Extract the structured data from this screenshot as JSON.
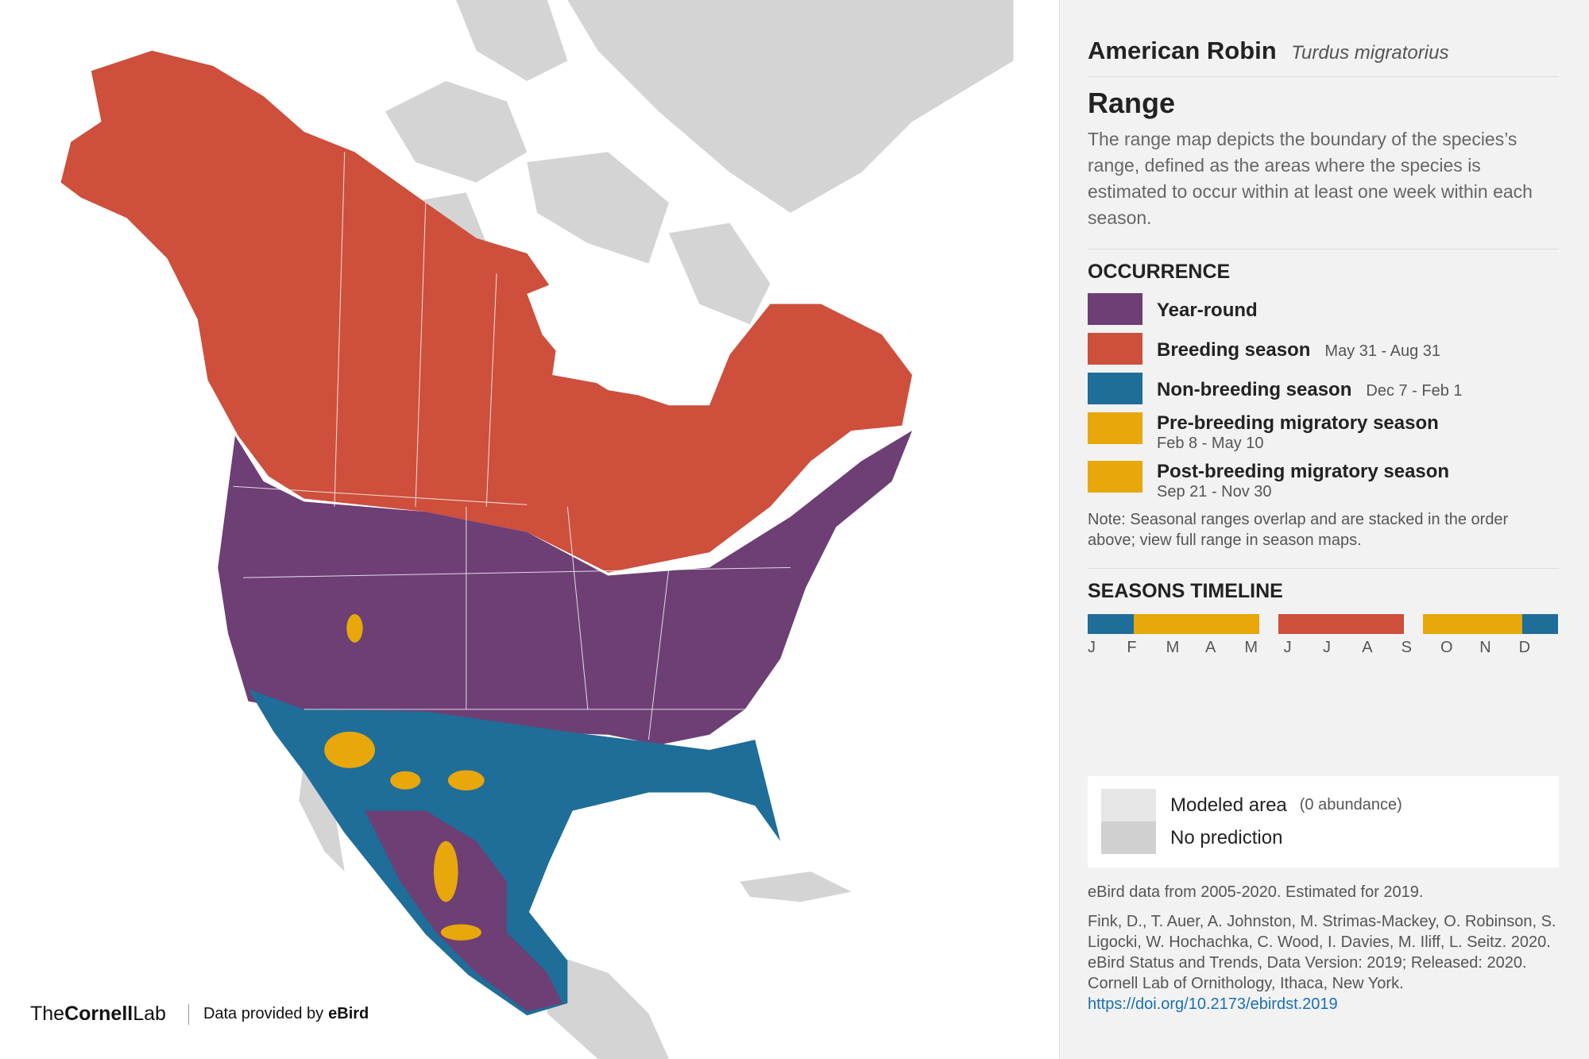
{
  "header": {
    "common_name": "American Robin",
    "scientific_name": "Turdus migratorius"
  },
  "range": {
    "title": "Range",
    "description": "The range map depicts the boundary of the species’s range, defined as the areas where the species is estimated to occur within at least one week within each season."
  },
  "occurrence": {
    "title": "OCCURRENCE",
    "items": [
      {
        "label": "Year-round",
        "color": "#6d3f75"
      },
      {
        "label": "Breeding season",
        "dates": "May 31 - Aug 31",
        "color": "#cd4f3c"
      },
      {
        "label": "Non-breeding season",
        "dates": "Dec 7 - Feb 1",
        "color": "#1f6d99"
      },
      {
        "label": "Pre-breeding migratory season",
        "dates": "Feb 8 - May 10",
        "color": "#e8a70a"
      },
      {
        "label": "Post-breeding migratory season",
        "dates": "Sep 21 - Nov 30",
        "color": "#e8a70a"
      }
    ],
    "note": "Note: Seasonal ranges overlap and are stacked in the order above; view full range in season maps."
  },
  "timeline": {
    "title": "SEASONS TIMELINE",
    "months": [
      "J",
      "F",
      "M",
      "A",
      "M",
      "J",
      "J",
      "A",
      "S",
      "O",
      "N",
      "D"
    ]
  },
  "map_legend": {
    "modeled": "Modeled area",
    "modeled_note": "(0 abundance)",
    "no_prediction": "No prediction"
  },
  "data_note": "eBird data from 2005-2020. Estimated for 2019.",
  "citation": {
    "text": "Fink, D., T. Auer, A. Johnston, M. Strimas-Mackey, O. Robinson, S. Ligocki, W. Hochachka, C. Wood, I. Davies, M. Iliff, L. Seitz. 2020. eBird Status and Trends, Data Version: 2019; Released: 2020. Cornell Lab of Ornithology, Ithaca, New York.",
    "doi": "https://doi.org/10.2173/ebirdst.2019"
  },
  "logo": {
    "prefix": "The",
    "bold": "Cornell",
    "suffix": "Lab",
    "credit": "Data provided by",
    "credit_bold": "eBird"
  }
}
